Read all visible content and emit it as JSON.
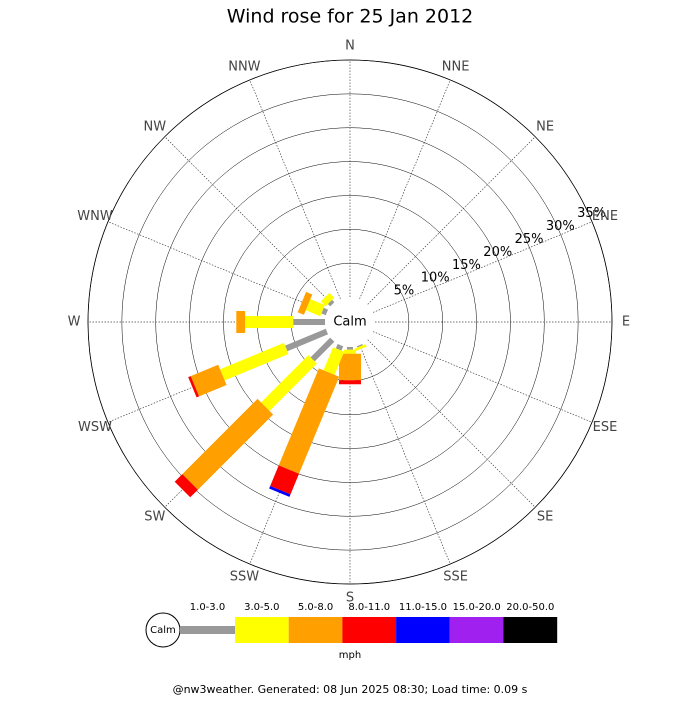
{
  "chart_data": {
    "type": "wind-rose",
    "title": "Wind rose for 25 Jan 2012",
    "directions": [
      "N",
      "NNE",
      "NE",
      "ENE",
      "E",
      "ESE",
      "SE",
      "SSE",
      "S",
      "SSW",
      "SW",
      "WSW",
      "W",
      "WNW",
      "NW",
      "NNW"
    ],
    "calm_label": "Calm",
    "rlim": [
      0,
      35
    ],
    "rticks": [
      {
        "value": 5,
        "label": "5%"
      },
      {
        "value": 10,
        "label": "10%"
      },
      {
        "value": 15,
        "label": "15%"
      },
      {
        "value": 20,
        "label": "20%"
      },
      {
        "value": 25,
        "label": "25%"
      },
      {
        "value": 30,
        "label": "30%"
      },
      {
        "value": 35,
        "label": "35%"
      }
    ],
    "series": [
      {
        "name": "1.0-3.0",
        "color": "#999999",
        "values": [
          0,
          0,
          0,
          0,
          0,
          0,
          0,
          0.2,
          0.4,
          0.7,
          4.1,
          6.5,
          4.7,
          0.7,
          0.5,
          0
        ]
      },
      {
        "name": "3.0-5.0",
        "color": "#ffff00",
        "values": [
          0,
          0,
          0,
          0,
          0,
          0,
          0,
          0.4,
          0.6,
          3.7,
          9.9,
          10.2,
          7.1,
          2.3,
          1.0,
          0
        ]
      },
      {
        "name": "5.0-8.0",
        "color": "#ffa000",
        "values": [
          0,
          0,
          0,
          0,
          0,
          0,
          0,
          0,
          3.9,
          15.5,
          15.7,
          4.4,
          1.3,
          1.0,
          0,
          0
        ]
      },
      {
        "name": "8.0-11.0",
        "color": "#ff0000",
        "values": [
          0,
          0,
          0,
          0,
          0,
          0,
          0,
          0,
          0.6,
          3.3,
          1.6,
          0.4,
          0,
          0,
          0,
          0
        ]
      },
      {
        "name": "11.0-15.0",
        "color": "#0000ff",
        "values": [
          0,
          0,
          0,
          0,
          0,
          0,
          0,
          0,
          0,
          0.4,
          0,
          0,
          0,
          0,
          0,
          0
        ]
      },
      {
        "name": "15.0-20.0",
        "color": "#a020f0",
        "values": [
          0,
          0,
          0,
          0,
          0,
          0,
          0,
          0,
          0,
          0,
          0,
          0,
          0,
          0,
          0,
          0
        ]
      },
      {
        "name": "20.0-50.0",
        "color": "#000000",
        "values": [
          0,
          0,
          0,
          0,
          0,
          0,
          0,
          0,
          0,
          0,
          0,
          0,
          0,
          0,
          0,
          0
        ]
      }
    ],
    "unit": "mph",
    "footer": "@nw3weather. Generated: 08 Jun 2025 08:30; Load time: 0.09 s"
  }
}
